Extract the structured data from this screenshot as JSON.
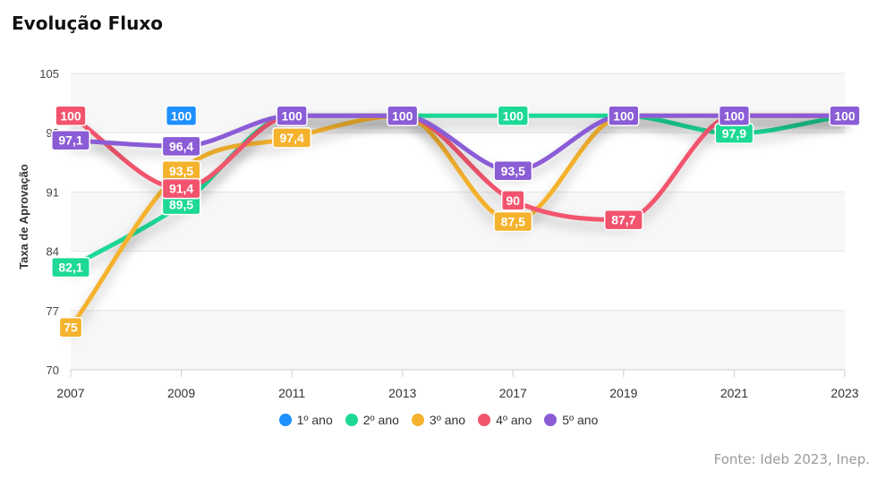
{
  "title": "Evolução Fluxo",
  "source": "Fonte: Ideb 2023, Inep.",
  "chart_data": {
    "type": "line",
    "title": "Evolução Fluxo",
    "xlabel": "",
    "ylabel": "Taxa de Aprovação",
    "categories": [
      "2007",
      "2009",
      "2011",
      "2013",
      "2017",
      "2019",
      "2021",
      "2023"
    ],
    "ylim": [
      70,
      105
    ],
    "yticks": [
      "70",
      "77",
      "84",
      "91",
      "98",
      "105"
    ],
    "legend_position": "bottom",
    "series": [
      {
        "name": "1º ano",
        "color": "#1e90ff",
        "values": [
          100,
          100,
          100,
          100,
          100,
          100,
          100,
          100
        ],
        "labels": [
          "100",
          "100",
          "",
          "",
          "",
          "",
          "",
          ""
        ]
      },
      {
        "name": "2º ano",
        "color": "#1ed996",
        "values": [
          82.1,
          89.5,
          100,
          100,
          100,
          100,
          97.9,
          100
        ],
        "labels": [
          "82,1",
          "89,5",
          "",
          "",
          "100",
          "",
          "97,9",
          ""
        ]
      },
      {
        "name": "3º ano",
        "color": "#f5b22d",
        "values": [
          75,
          93.5,
          97.4,
          100,
          87.5,
          100,
          100,
          100
        ],
        "labels": [
          "75",
          "93,5",
          "97,4",
          "",
          "87,5",
          "",
          "",
          ""
        ]
      },
      {
        "name": "4º ano",
        "color": "#f2546e",
        "values": [
          100,
          91.4,
          100,
          100,
          90,
          87.7,
          100,
          100
        ],
        "labels": [
          "100",
          "91,4",
          "",
          "",
          "90",
          "87,7",
          "",
          ""
        ]
      },
      {
        "name": "5º ano",
        "color": "#8a5cd6",
        "values": [
          97.1,
          96.4,
          100,
          100,
          93.5,
          100,
          100,
          100
        ],
        "labels": [
          "97,1",
          "96,4",
          "100",
          "100",
          "93,5",
          "100",
          "100",
          "100"
        ]
      }
    ]
  }
}
